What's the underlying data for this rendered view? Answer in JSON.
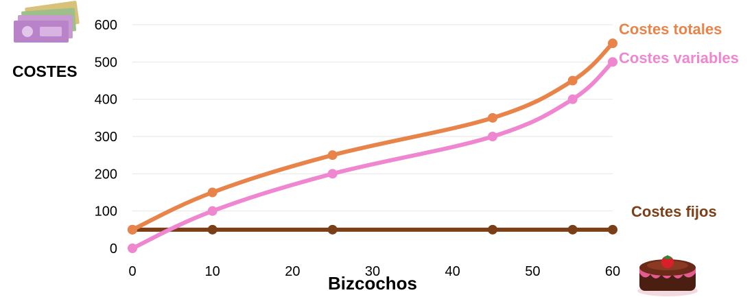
{
  "chart_data": {
    "type": "line",
    "ylabel": "COSTES",
    "xlabel": "Bizcochos",
    "x_ticks": [
      0,
      10,
      20,
      30,
      40,
      50,
      60
    ],
    "y_ticks": [
      0,
      100,
      200,
      300,
      400,
      500,
      600
    ],
    "xlim": [
      0,
      60
    ],
    "ylim": [
      0,
      600
    ],
    "grid": "horizontal",
    "legend": "inline-right",
    "series": [
      {
        "name": "Costes totales",
        "color": "#E8834A",
        "points": [
          [
            0,
            50
          ],
          [
            10,
            150
          ],
          [
            25,
            250
          ],
          [
            45,
            350
          ],
          [
            55,
            450
          ],
          [
            60,
            550
          ]
        ]
      },
      {
        "name": "Costes variables",
        "color": "#EE86D0",
        "points": [
          [
            0,
            0
          ],
          [
            10,
            100
          ],
          [
            25,
            200
          ],
          [
            45,
            300
          ],
          [
            55,
            400
          ],
          [
            60,
            500
          ]
        ]
      },
      {
        "name": "Costes fijos",
        "color": "#7B3F18",
        "points": [
          [
            0,
            50
          ],
          [
            10,
            50
          ],
          [
            25,
            50
          ],
          [
            45,
            50
          ],
          [
            55,
            50
          ],
          [
            60,
            50
          ]
        ]
      }
    ]
  },
  "icons": {
    "money": "euro-banknotes-icon",
    "cake": "cake-icon"
  }
}
